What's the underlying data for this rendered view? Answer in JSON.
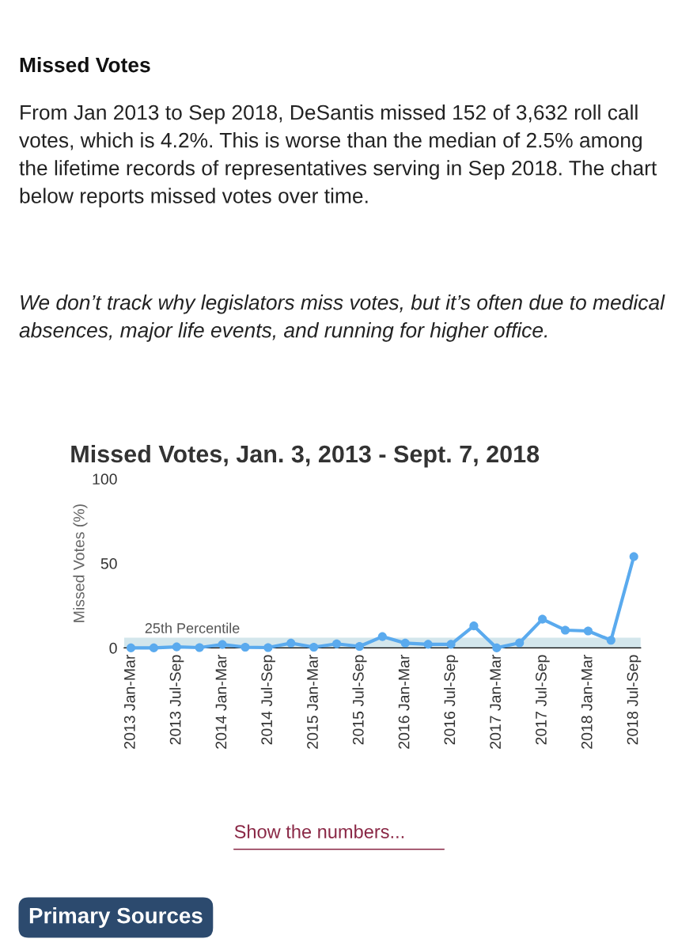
{
  "chart_data": {
    "type": "line",
    "title": "Missed Votes, Jan. 3, 2013 - Sept. 7, 2018",
    "ylabel": "Missed Votes (%)",
    "categories": [
      "2013 Jan-Mar",
      null,
      "2013 Jul-Sep",
      null,
      "2014 Jan-Mar",
      null,
      "2014 Jul-Sep",
      null,
      "2015 Jan-Mar",
      null,
      "2015 Jul-Sep",
      null,
      "2016 Jan-Mar",
      null,
      "2016 Jul-Sep",
      null,
      "2017 Jan-Mar",
      null,
      "2017 Jul-Sep",
      null,
      "2018 Jan-Mar",
      null,
      "2018 Jul-Sep"
    ],
    "series": [
      {
        "color": "#5aaaee",
        "values": [
          0,
          0,
          0.6,
          0.2,
          2,
          0.4,
          0.2,
          2.8,
          0.4,
          2.4,
          0.9,
          6.7,
          2.8,
          2.1,
          2.1,
          13,
          0,
          3,
          17,
          10.5,
          10,
          4.5,
          54
        ]
      }
    ],
    "ylim": [
      0,
      100
    ],
    "yticks": [
      0,
      50,
      100
    ],
    "grid": false,
    "marker": "circle",
    "line_style": "solid",
    "bands": [
      {
        "axis": "y",
        "from": 0,
        "to": 6,
        "label": "25th Percentile",
        "color": "#d3e6ec"
      }
    ],
    "annotations": [
      "Missed Votes",
      "From Jan 2013 to Sep 2018, DeSantis missed 152 of 3,632 roll call votes, which is 4.2%. This is worse than the median of 2.5% among the lifetime records of representatives serving in Sep 2018. The chart below reports missed votes over time.",
      "We don’t track why legislators miss votes, but it’s often due to medical absences, major life events, and running for higher office.",
      "Show the numbers...",
      "Primary Sources"
    ]
  }
}
